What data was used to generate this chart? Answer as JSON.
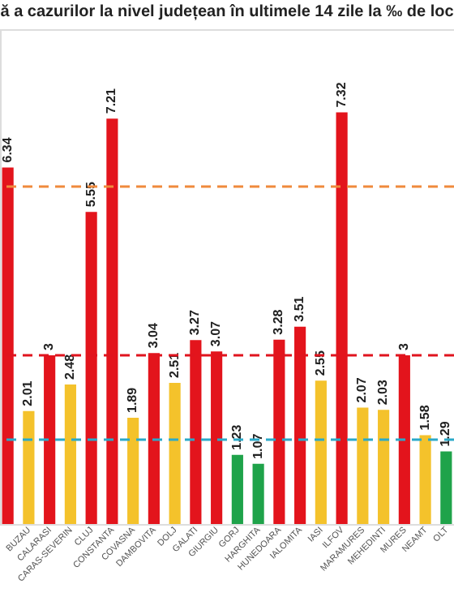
{
  "chart_data": {
    "type": "bar",
    "title": "ă a cazurilor la nivel județean în ultimele 14 zile la ‰ de loc",
    "categories": [
      null,
      "BUZAU",
      "CALARASI",
      "CARAS-SEVERIN",
      "CLUJ",
      "CONSTANTA",
      "COVASNA",
      "DAMBOVITA",
      "DOLJ",
      "GALATI",
      "GIURGIU",
      "GORJ",
      "HARGHITA",
      "HUNEDOARA",
      "IALOMITA",
      "IASI",
      "ILFOV",
      "MARAMURES",
      "MEHEDINTI",
      "MURES",
      "NEAMT",
      "OLT"
    ],
    "values": [
      6.34,
      2.01,
      3,
      2.48,
      5.55,
      7.21,
      1.89,
      3.04,
      2.51,
      3.27,
      3.07,
      1.23,
      1.07,
      3.28,
      3.51,
      2.55,
      7.32,
      2.07,
      2.03,
      3,
      1.58,
      1.29
    ],
    "colors": [
      "#e3141c",
      "#f4c22b",
      "#e3141c",
      "#f4c22b",
      "#e3141c",
      "#e3141c",
      "#f4c22b",
      "#e3141c",
      "#f4c22b",
      "#e3141c",
      "#e3141c",
      "#1fa34a",
      "#1fa34a",
      "#e3141c",
      "#e3141c",
      "#f4c22b",
      "#e3141c",
      "#f4c22b",
      "#f4c22b",
      "#e3141c",
      "#f4c22b",
      "#1fa34a"
    ],
    "ylim": [
      0,
      8.8
    ],
    "data_labels": true,
    "ref_lines": [
      {
        "axis": "y",
        "value": 1.5,
        "color": "#2aa9c9",
        "line_style": "dashed"
      },
      {
        "axis": "y",
        "value": 3,
        "color": "#e0141e",
        "line_style": "dashed"
      },
      {
        "axis": "y",
        "value": 6,
        "color": "#f08a3c",
        "line_style": "dashed"
      }
    ]
  }
}
